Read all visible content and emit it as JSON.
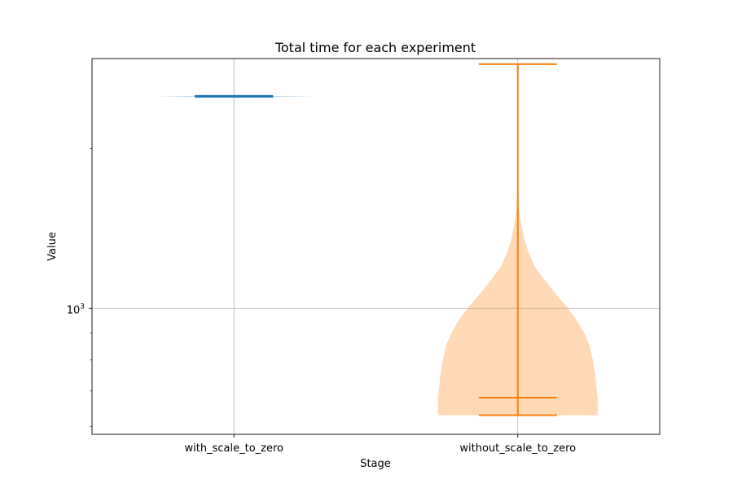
{
  "chart_data": {
    "type": "violin",
    "title": "Total time for each experiment",
    "xlabel": "Stage",
    "ylabel": "Value",
    "yscale": "log",
    "ylim": [
      580,
      2950
    ],
    "grid": true,
    "categories": [
      "with_scale_to_zero",
      "without_scale_to_zero"
    ],
    "y_tick_labels": [
      {
        "value": 1000,
        "base": "10",
        "exp": "3"
      }
    ],
    "violins": [
      {
        "name": "with_scale_to_zero",
        "color": "#1f77b4",
        "min": 2500,
        "max": 2510,
        "profile": [
          [
            2495,
            0
          ],
          [
            2500,
            0.5
          ],
          [
            2505,
            1.0
          ],
          [
            2510,
            0.5
          ],
          [
            2515,
            0
          ]
        ]
      },
      {
        "name": "without_scale_to_zero",
        "color": "#ff7f0e",
        "min": 630,
        "max": 2880,
        "extra_lines": [
          680
        ],
        "profile": [
          [
            630,
            1.0
          ],
          [
            680,
            1.0
          ],
          [
            700,
            0.99
          ],
          [
            750,
            0.97
          ],
          [
            800,
            0.94
          ],
          [
            850,
            0.9
          ],
          [
            900,
            0.83
          ],
          [
            950,
            0.74
          ],
          [
            1000,
            0.63
          ],
          [
            1050,
            0.51
          ],
          [
            1100,
            0.4
          ],
          [
            1150,
            0.3
          ],
          [
            1200,
            0.21
          ],
          [
            1280,
            0.13
          ],
          [
            1350,
            0.08
          ],
          [
            1450,
            0.04
          ],
          [
            1550,
            0.015
          ],
          [
            1700,
            0.005
          ],
          [
            2000,
            0.002
          ],
          [
            2400,
            0.001
          ],
          [
            2600,
            0.002
          ],
          [
            2750,
            0.01
          ],
          [
            2850,
            0.015
          ],
          [
            2880,
            0.01
          ]
        ]
      }
    ]
  }
}
